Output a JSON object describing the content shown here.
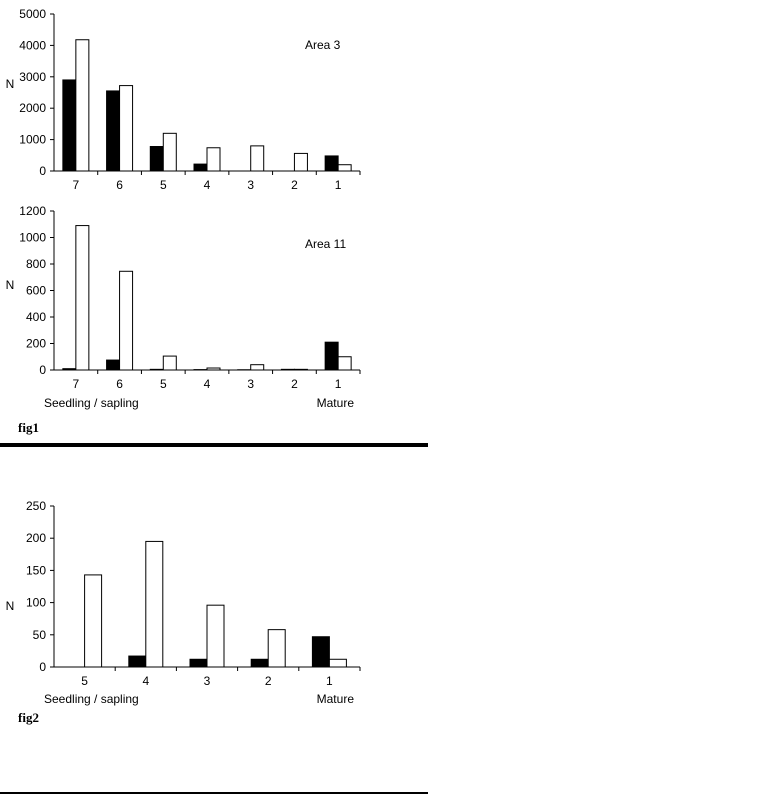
{
  "chart_data": [
    {
      "type": "bar",
      "annotation": "Area 3",
      "ylabel": "N",
      "categories": [
        "7",
        "6",
        "5",
        "4",
        "3",
        "2",
        "1"
      ],
      "ylim": [
        0,
        5000
      ],
      "yticks": [
        0,
        1000,
        2000,
        3000,
        4000,
        5000
      ],
      "series": [
        {
          "color": "#000000",
          "values": [
            2900,
            2550,
            780,
            220,
            0,
            0,
            480
          ]
        },
        {
          "color": "#ffffff",
          "values": [
            4180,
            2720,
            1200,
            740,
            800,
            560,
            200
          ]
        }
      ]
    },
    {
      "type": "bar",
      "annotation": "Area 11",
      "ylabel": "N",
      "categories": [
        "7",
        "6",
        "5",
        "4",
        "3",
        "2",
        "1"
      ],
      "xlabel_left": "Seedling / sapling",
      "xlabel_right": "Mature",
      "ylim": [
        0,
        1200
      ],
      "yticks": [
        0,
        200,
        400,
        600,
        800,
        1000,
        1200
      ],
      "series": [
        {
          "color": "#000000",
          "values": [
            10,
            75,
            5,
            3,
            2,
            5,
            210
          ]
        },
        {
          "color": "#ffffff",
          "values": [
            1090,
            745,
            105,
            15,
            40,
            5,
            100
          ]
        }
      ]
    },
    {
      "type": "bar",
      "ylabel": "N",
      "categories": [
        "5",
        "4",
        "3",
        "2",
        "1"
      ],
      "xlabel_left": "Seedling / sapling",
      "xlabel_right": "Mature",
      "ylim": [
        0,
        250
      ],
      "yticks": [
        0,
        50,
        100,
        150,
        200,
        250
      ],
      "series": [
        {
          "color": "#000000",
          "values": [
            0,
            17,
            12,
            12,
            47
          ]
        },
        {
          "color": "#ffffff",
          "values": [
            143,
            195,
            96,
            58,
            12
          ]
        }
      ]
    }
  ],
  "captions": {
    "fig1": "fig1",
    "fig2": "fig2"
  }
}
